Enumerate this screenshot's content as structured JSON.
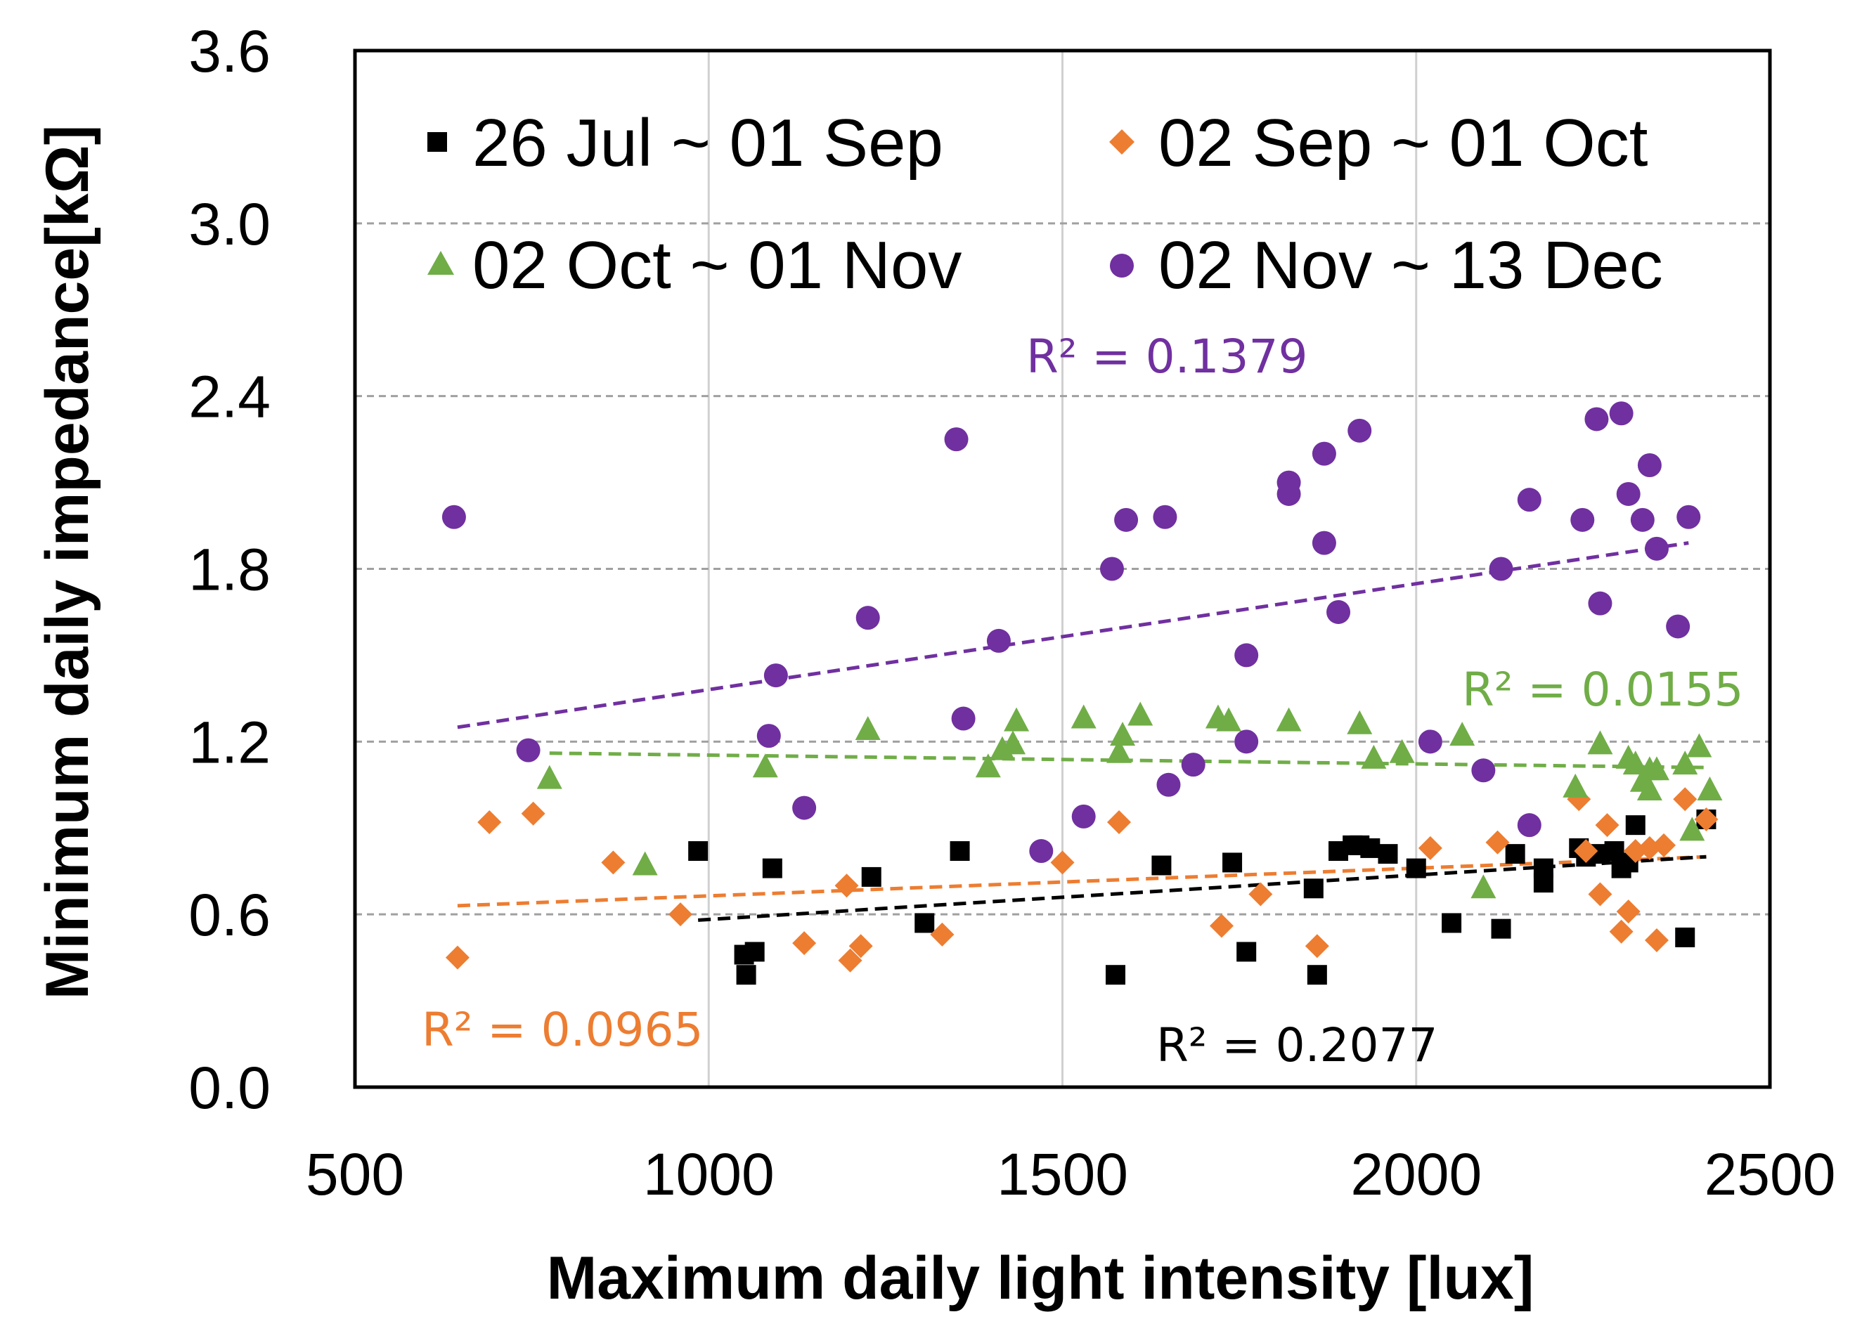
{
  "chart_data": {
    "type": "scatter",
    "title": "",
    "xlabel": "Maximum daily light intensity [lux]",
    "ylabel": "Minimum daily impedance[kΩ]",
    "xlim": [
      500,
      2500
    ],
    "ylim": [
      0,
      3.6
    ],
    "x_ticks": [
      "500",
      "1000",
      "1500",
      "2000",
      "2500"
    ],
    "y_ticks": [
      "0.0",
      "0.6",
      "1.2",
      "1.8",
      "2.4",
      "3.0",
      "3.6"
    ],
    "x_tick_values": [
      500,
      1000,
      1500,
      2000,
      2500
    ],
    "y_tick_values": [
      0,
      0.6,
      1.2,
      1.8,
      2.4,
      3.0,
      3.6
    ],
    "vertical_grid": [
      1000,
      1500,
      2000
    ],
    "horizontal_grid": [
      0.6,
      1.2,
      1.8,
      2.4,
      3.0
    ],
    "legend_position": "top",
    "series": [
      {
        "name": "26 Jul ~ 01 Sep",
        "marker": "square",
        "color": "#000000",
        "points": [
          [
            985,
            0.82
          ],
          [
            1050,
            0.46
          ],
          [
            1053,
            0.39
          ],
          [
            1065,
            0.47
          ],
          [
            1090,
            0.76
          ],
          [
            1230,
            0.73
          ],
          [
            1305,
            0.57
          ],
          [
            1355,
            0.82
          ],
          [
            1575,
            0.39
          ],
          [
            1640,
            0.77
          ],
          [
            1740,
            0.78
          ],
          [
            1760,
            0.47
          ],
          [
            1855,
            0.69
          ],
          [
            1860,
            0.39
          ],
          [
            1890,
            0.82
          ],
          [
            1910,
            0.84
          ],
          [
            1920,
            0.84
          ],
          [
            1935,
            0.83
          ],
          [
            1960,
            0.81
          ],
          [
            2000,
            0.76
          ],
          [
            2050,
            0.57
          ],
          [
            2120,
            0.55
          ],
          [
            2140,
            0.81
          ],
          [
            2180,
            0.76
          ],
          [
            2180,
            0.71
          ],
          [
            2230,
            0.83
          ],
          [
            2240,
            0.8
          ],
          [
            2260,
            0.81
          ],
          [
            2280,
            0.82
          ],
          [
            2290,
            0.76
          ],
          [
            2300,
            0.78
          ],
          [
            2310,
            0.91
          ],
          [
            2380,
            0.52
          ],
          [
            2410,
            0.93
          ]
        ]
      },
      {
        "name": "02 Sep ~ 01 Oct",
        "marker": "diamond",
        "color": "#ed7d31",
        "points": [
          [
            645,
            0.45
          ],
          [
            690,
            0.92
          ],
          [
            752,
            0.95
          ],
          [
            865,
            0.78
          ],
          [
            960,
            0.6
          ],
          [
            1135,
            0.5
          ],
          [
            1195,
            0.7
          ],
          [
            1200,
            0.44
          ],
          [
            1215,
            0.49
          ],
          [
            1330,
            0.53
          ],
          [
            1500,
            0.78
          ],
          [
            1580,
            0.92
          ],
          [
            1725,
            0.56
          ],
          [
            1780,
            0.67
          ],
          [
            1860,
            0.49
          ],
          [
            2020,
            0.83
          ],
          [
            2115,
            0.85
          ],
          [
            2230,
            1.0
          ],
          [
            2240,
            0.82
          ],
          [
            2260,
            0.67
          ],
          [
            2270,
            0.91
          ],
          [
            2290,
            0.54
          ],
          [
            2300,
            0.61
          ],
          [
            2310,
            0.82
          ],
          [
            2330,
            0.83
          ],
          [
            2340,
            0.51
          ],
          [
            2350,
            0.84
          ],
          [
            2380,
            1.0
          ],
          [
            2410,
            0.93
          ]
        ]
      },
      {
        "name": "02 Oct ~ 01 Nov",
        "marker": "triangle",
        "color": "#70ad47",
        "points": [
          [
            775,
            1.07
          ],
          [
            910,
            0.77
          ],
          [
            1080,
            1.11
          ],
          [
            1225,
            1.24
          ],
          [
            1395,
            1.11
          ],
          [
            1415,
            1.17
          ],
          [
            1430,
            1.19
          ],
          [
            1435,
            1.27
          ],
          [
            1530,
            1.28
          ],
          [
            1580,
            1.16
          ],
          [
            1585,
            1.22
          ],
          [
            1610,
            1.29
          ],
          [
            1720,
            1.28
          ],
          [
            1735,
            1.27
          ],
          [
            1820,
            1.27
          ],
          [
            1920,
            1.26
          ],
          [
            1940,
            1.14
          ],
          [
            1980,
            1.16
          ],
          [
            2065,
            1.22
          ],
          [
            2095,
            0.69
          ],
          [
            2225,
            1.04
          ],
          [
            2260,
            1.19
          ],
          [
            2300,
            1.14
          ],
          [
            2310,
            1.12
          ],
          [
            2320,
            1.06
          ],
          [
            2330,
            1.1
          ],
          [
            2330,
            1.03
          ],
          [
            2340,
            1.1
          ],
          [
            2380,
            1.12
          ],
          [
            2390,
            0.89
          ],
          [
            2400,
            1.18
          ],
          [
            2415,
            1.03
          ]
        ]
      },
      {
        "name": "02 Nov ~ 13 Dec",
        "marker": "circle",
        "color": "#7030a0",
        "points": [
          [
            640,
            1.98
          ],
          [
            745,
            1.17
          ],
          [
            1085,
            1.22
          ],
          [
            1095,
            1.43
          ],
          [
            1135,
            0.97
          ],
          [
            1225,
            1.63
          ],
          [
            1350,
            2.25
          ],
          [
            1360,
            1.28
          ],
          [
            1410,
            1.55
          ],
          [
            1470,
            0.82
          ],
          [
            1530,
            0.94
          ],
          [
            1570,
            1.8
          ],
          [
            1590,
            1.97
          ],
          [
            1645,
            1.98
          ],
          [
            1650,
            1.05
          ],
          [
            1685,
            1.12
          ],
          [
            1760,
            1.5
          ],
          [
            1760,
            1.2
          ],
          [
            1820,
            2.1
          ],
          [
            1820,
            2.06
          ],
          [
            1870,
            2.2
          ],
          [
            1870,
            1.89
          ],
          [
            1890,
            1.65
          ],
          [
            1920,
            2.28
          ],
          [
            2020,
            1.2
          ],
          [
            2095,
            1.1
          ],
          [
            2120,
            1.8
          ],
          [
            2160,
            2.04
          ],
          [
            2160,
            0.91
          ],
          [
            2235,
            1.97
          ],
          [
            2255,
            2.32
          ],
          [
            2260,
            1.68
          ],
          [
            2290,
            2.34
          ],
          [
            2300,
            2.06
          ],
          [
            2320,
            1.97
          ],
          [
            2330,
            2.16
          ],
          [
            2340,
            1.87
          ],
          [
            2370,
            1.6
          ],
          [
            2385,
            1.98
          ]
        ]
      }
    ],
    "trendlines": [
      {
        "series": "02 Nov ~ 13 Dec",
        "color": "#7030a0",
        "x": [
          645,
          2385
        ],
        "y": [
          1.25,
          1.89
        ],
        "label": "R² = 0.1379"
      },
      {
        "series": "02 Oct ~ 01 Nov",
        "color": "#70ad47",
        "x": [
          775,
          2410
        ],
        "y": [
          1.16,
          1.11
        ],
        "label": "R² = 0.0155"
      },
      {
        "series": "02 Sep ~ 01 Oct",
        "color": "#ed7d31",
        "x": [
          645,
          2410
        ],
        "y": [
          0.63,
          0.8
        ],
        "label": "R² = 0.0965"
      },
      {
        "series": "26 Jul ~ 01 Sep",
        "color": "#000000",
        "x": [
          985,
          2410
        ],
        "y": [
          0.58,
          0.8
        ],
        "label": "R² = 0.2077"
      }
    ]
  }
}
